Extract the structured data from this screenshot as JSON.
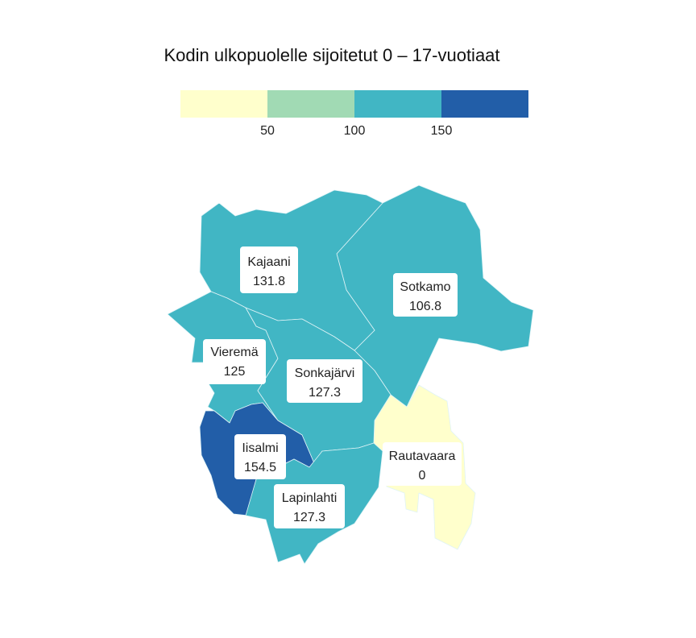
{
  "title": "Kodin ulkopuolelle sijoitetut 0 – 17-vuotiaat",
  "legend": {
    "bins": [
      "#ffffcc",
      "#a1dab4",
      "#41b6c4",
      "#225ea8"
    ],
    "ticks": [
      "50",
      "100",
      "150"
    ]
  },
  "regions": [
    {
      "name": "Kajaani",
      "value": "131.8",
      "color": "#41b6c4"
    },
    {
      "name": "Sotkamo",
      "value": "106.8",
      "color": "#41b6c4"
    },
    {
      "name": "Vieremä",
      "value": "125",
      "color": "#41b6c4"
    },
    {
      "name": "Sonkajärvi",
      "value": "127.3",
      "color": "#41b6c4"
    },
    {
      "name": "Iisalmi",
      "value": "154.5",
      "color": "#225ea8"
    },
    {
      "name": "Rautavaara",
      "value": "0",
      "color": "#ffffcc"
    },
    {
      "name": "Lapinlahti",
      "value": "127.3",
      "color": "#41b6c4"
    }
  ]
}
